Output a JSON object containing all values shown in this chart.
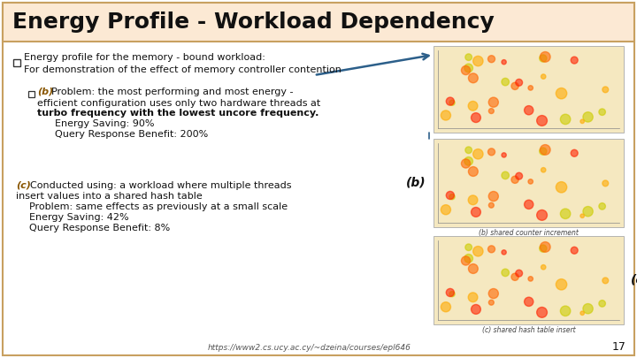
{
  "title": "Energy Profile - Workload Dependency",
  "title_bg": "#fce9d4",
  "title_border": "#c8a060",
  "slide_bg": "#ffffff",
  "slide_border": "#c8a060",
  "bullet1": "Energy profile for the memory - bound workload:",
  "bullet1_sub": "    For demonstration of the effect of memory controller contention",
  "bullet2_label": "(b)",
  "bullet2_line1": " Problem: the most performing and most energy -",
  "bullet2_line2": "        efficient configuration uses only two hardware threads at",
  "bullet2_line3": "        turbo frequency with the lowest uncore frequency.",
  "bullet2_sub1": "            Energy Saving: 90%",
  "bullet2_sub2": "            Query Response Benefit: 200%",
  "bullet3_label": "(c)",
  "bullet3_line1": " Conducted using: a workload where multiple threads",
  "bullet3_line2": "    insert values into a shared hash table",
  "bullet3_sub1": "        Problem: same effects as previously at a small scale",
  "bullet3_sub2": "        Energy Saving: 42%",
  "bullet3_sub3": "        Query Response Benefit: 8%",
  "footer": "https://www2.cs.ucy.ac.cy/~dzeina/courses/epl646",
  "page_number": "17",
  "label_b": "(b)",
  "label_c": "(c)",
  "caption_b": "(b) shared counter increment",
  "caption_c": "(c) shared hash table insert",
  "chart_bg": "#f5e8c0",
  "arrow_color": "#2c5f8a",
  "text_color": "#111111",
  "label_color": "#885500",
  "checkbox_color": "#333333"
}
